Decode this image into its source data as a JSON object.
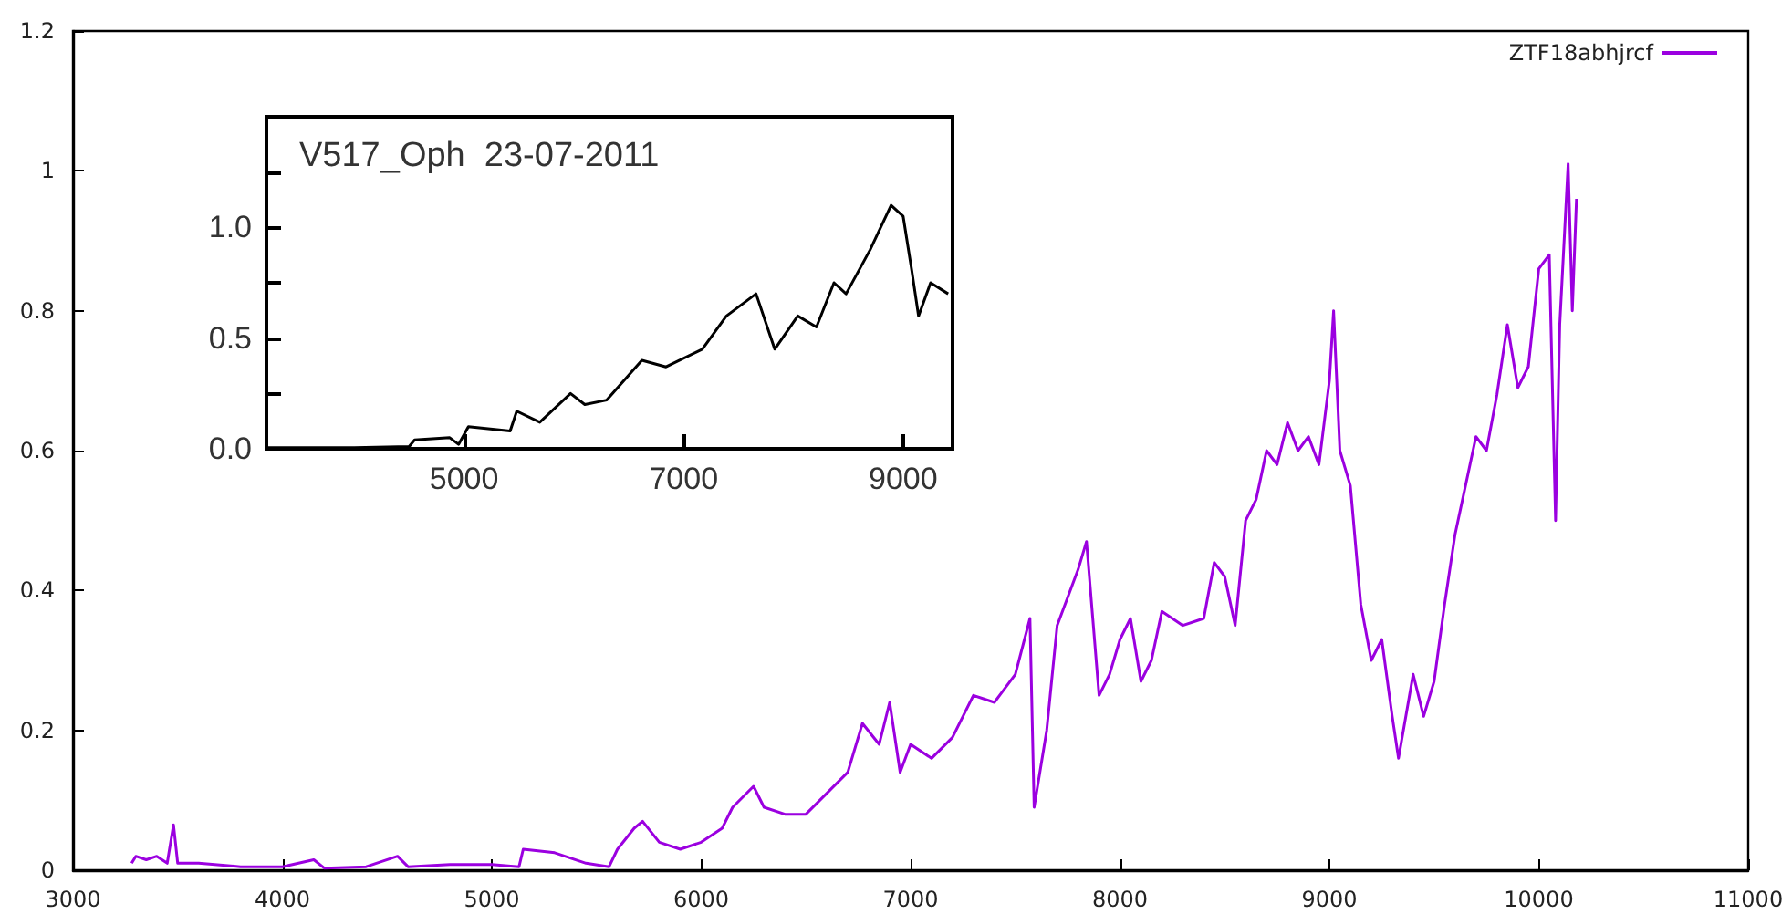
{
  "chart_data": [
    {
      "type": "line",
      "legend": "top right",
      "grid": false,
      "marker": "none",
      "line_style": "solid",
      "xlim": [
        3000,
        11000
      ],
      "xticks": [
        3000,
        4000,
        5000,
        6000,
        7000,
        8000,
        9000,
        10000,
        11000
      ],
      "ylim": [
        0,
        1.2
      ],
      "yticks": [
        0,
        0.2,
        0.4,
        0.6,
        0.8,
        1,
        1.2
      ],
      "x": [
        3280,
        3300,
        3350,
        3400,
        3450,
        3480,
        3500,
        3600,
        3800,
        4000,
        4150,
        4200,
        4400,
        4550,
        4600,
        4800,
        5000,
        5130,
        5150,
        5300,
        5450,
        5560,
        5600,
        5680,
        5720,
        5800,
        5900,
        6000,
        6100,
        6150,
        6250,
        6300,
        6400,
        6500,
        6600,
        6700,
        6770,
        6850,
        6900,
        6950,
        7000,
        7100,
        7200,
        7300,
        7400,
        7500,
        7570,
        7590,
        7650,
        7700,
        7750,
        7800,
        7840,
        7870,
        7900,
        7950,
        8000,
        8050,
        8100,
        8150,
        8200,
        8300,
        8400,
        8450,
        8500,
        8550,
        8600,
        8650,
        8700,
        8750,
        8800,
        8850,
        8900,
        8950,
        9000,
        9020,
        9050,
        9100,
        9150,
        9200,
        9250,
        9300,
        9330,
        9400,
        9450,
        9500,
        9550,
        9600,
        9650,
        9700,
        9750,
        9800,
        9850,
        9900,
        9950,
        10000,
        10050,
        10080,
        10100,
        10140,
        10160,
        10180
      ],
      "series": [
        {
          "name": "ZTF18abhjrcf",
          "color": "#9b00e0",
          "values": [
            0.01,
            0.02,
            0.015,
            0.02,
            0.01,
            0.065,
            0.01,
            0.01,
            0.005,
            0.005,
            0.015,
            0.003,
            0.005,
            0.02,
            0.005,
            0.008,
            0.008,
            0.005,
            0.03,
            0.025,
            0.01,
            0.005,
            0.03,
            0.06,
            0.07,
            0.04,
            0.03,
            0.04,
            0.06,
            0.09,
            0.12,
            0.09,
            0.08,
            0.08,
            0.11,
            0.14,
            0.21,
            0.18,
            0.24,
            0.14,
            0.18,
            0.16,
            0.19,
            0.25,
            0.24,
            0.28,
            0.36,
            0.09,
            0.2,
            0.35,
            0.39,
            0.43,
            0.47,
            0.36,
            0.25,
            0.28,
            0.33,
            0.36,
            0.27,
            0.3,
            0.37,
            0.35,
            0.36,
            0.44,
            0.42,
            0.35,
            0.5,
            0.53,
            0.6,
            0.58,
            0.64,
            0.6,
            0.62,
            0.58,
            0.7,
            0.8,
            0.6,
            0.55,
            0.38,
            0.3,
            0.33,
            0.22,
            0.16,
            0.28,
            0.22,
            0.27,
            0.38,
            0.48,
            0.55,
            0.62,
            0.6,
            0.68,
            0.78,
            0.69,
            0.72,
            0.86,
            0.88,
            0.5,
            0.78,
            1.01,
            0.8,
            0.96
          ]
        }
      ]
    },
    {
      "type": "line",
      "legend": false,
      "grid": false,
      "marker": "none",
      "line_style": "solid",
      "annotations": [
        "V517_Oph  23-07-2011"
      ],
      "xlim": [
        3200,
        9450
      ],
      "xticks": [
        5000,
        7000,
        9000
      ],
      "ylim": [
        0,
        1.5
      ],
      "yticks": [
        {
          "value": 0,
          "label": "0.0"
        },
        {
          "value": 0.25,
          "label": null
        },
        {
          "value": 0.5,
          "label": "0.5"
        },
        {
          "value": 0.75,
          "label": null
        },
        {
          "value": 1,
          "label": "1.0"
        },
        {
          "value": 1.25,
          "label": null
        }
      ],
      "x": [
        3200,
        4000,
        4500,
        4550,
        4870,
        4950,
        5040,
        5420,
        5480,
        5690,
        5970,
        6100,
        6300,
        6620,
        6840,
        7170,
        7390,
        7660,
        7830,
        8040,
        8210,
        8370,
        8480,
        8700,
        8890,
        9000,
        9080,
        9140,
        9250,
        9410
      ],
      "series": [
        {
          "color": "#000000",
          "values": [
            0.005,
            0.005,
            0.01,
            0.04,
            0.05,
            0.02,
            0.1,
            0.08,
            0.17,
            0.12,
            0.25,
            0.2,
            0.22,
            0.4,
            0.37,
            0.45,
            0.6,
            0.7,
            0.45,
            0.6,
            0.55,
            0.75,
            0.7,
            0.9,
            1.1,
            1.05,
            0.8,
            0.6,
            0.75,
            0.7
          ]
        }
      ]
    }
  ]
}
